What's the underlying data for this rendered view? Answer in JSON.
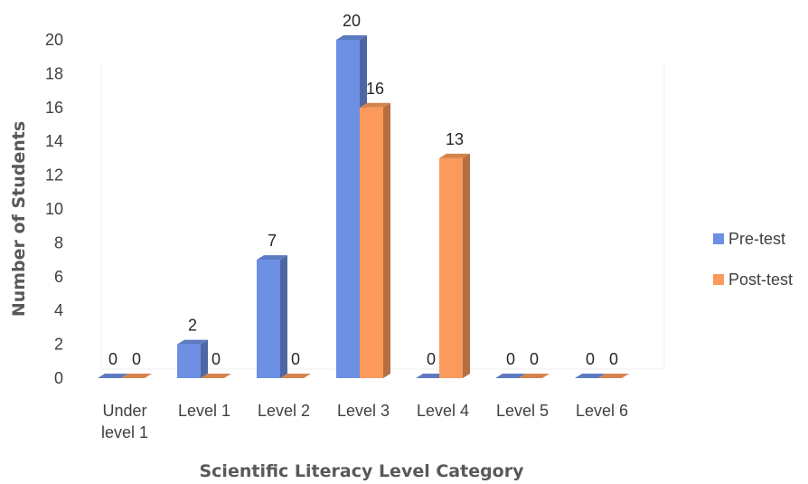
{
  "chart_data": {
    "type": "bar",
    "title": "",
    "xlabel": "Scientific Literacy Level Category",
    "ylabel": "Number of Students",
    "categories": [
      [
        "Under",
        "level 1"
      ],
      [
        "Level 1"
      ],
      [
        "Level 2"
      ],
      [
        "Level 3"
      ],
      [
        "Level 4"
      ],
      [
        "Level 5"
      ],
      [
        "Level 6"
      ]
    ],
    "series": [
      {
        "name": "Pre-test",
        "values": [
          0,
          2,
          7,
          20,
          0,
          0,
          0
        ],
        "color": "#6d8fe4"
      },
      {
        "name": "Post-test",
        "values": [
          0,
          0,
          0,
          16,
          13,
          0,
          0
        ],
        "color": "#fb9a5b"
      }
    ],
    "ylim": [
      0,
      20
    ],
    "yticks": [
      0,
      2,
      4,
      6,
      8,
      10,
      12,
      14,
      16,
      18,
      20
    ],
    "grid": false,
    "legend_position": "right",
    "style": "3d-clustered-column"
  }
}
